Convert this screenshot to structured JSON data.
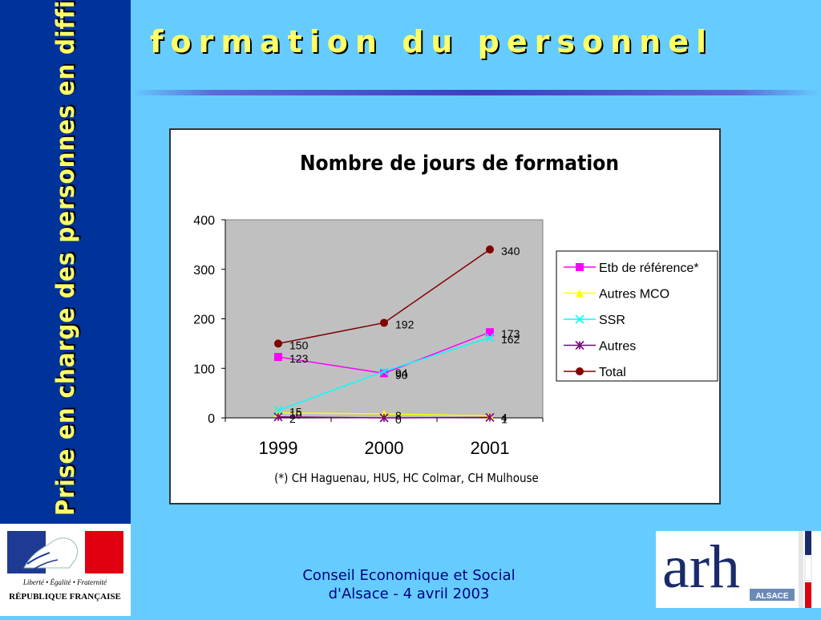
{
  "sidebar": {
    "text": "Prise en charge des personnes en difficulté avec l 'alcool"
  },
  "slide": {
    "title": "formation du personnel"
  },
  "footer": {
    "line1": "Conseil Economique et Social",
    "line2": "d'Alsace - 4 avril 2003"
  },
  "logos": {
    "republique": {
      "motto": "Liberté • Égalité • Fraternité",
      "name": "RÉPUBLIQUE FRANÇAISE"
    },
    "arh": {
      "letters": "arh",
      "region": "ALSACE"
    }
  },
  "chart_data": {
    "type": "line",
    "title": "Nombre de jours de formation",
    "xlabel": "",
    "ylabel": "",
    "categories": [
      "1999",
      "2000",
      "2001"
    ],
    "ylim": [
      0,
      400
    ],
    "yticks": [
      0,
      100,
      200,
      300,
      400
    ],
    "grid": false,
    "legend_position": "right",
    "plot_background": "#c0c0c0",
    "footnote": "(*) CH Haguenau, HUS, HC Colmar, CH Mulhouse",
    "series": [
      {
        "name": "Etb de référence*",
        "values": [
          123,
          90,
          173
        ],
        "color": "#ff00ff",
        "marker": "square",
        "labels": [
          "123",
          "90",
          "173"
        ]
      },
      {
        "name": "Autres MCO",
        "values": [
          10,
          8,
          4
        ],
        "color": "#ffff00",
        "marker": "triangle",
        "labels": [
          "10",
          "8",
          "4"
        ]
      },
      {
        "name": "SSR",
        "values": [
          15,
          94,
          162
        ],
        "color": "#00ffff",
        "marker": "x",
        "labels": [
          "15",
          "94",
          "162"
        ]
      },
      {
        "name": "Autres",
        "values": [
          2,
          0,
          1
        ],
        "color": "#800080",
        "marker": "star",
        "labels": [
          "2",
          "0",
          "1"
        ]
      },
      {
        "name": "Total",
        "values": [
          150,
          192,
          340
        ],
        "color": "#800000",
        "marker": "circle",
        "labels": [
          "150",
          "192",
          "340"
        ]
      }
    ]
  }
}
